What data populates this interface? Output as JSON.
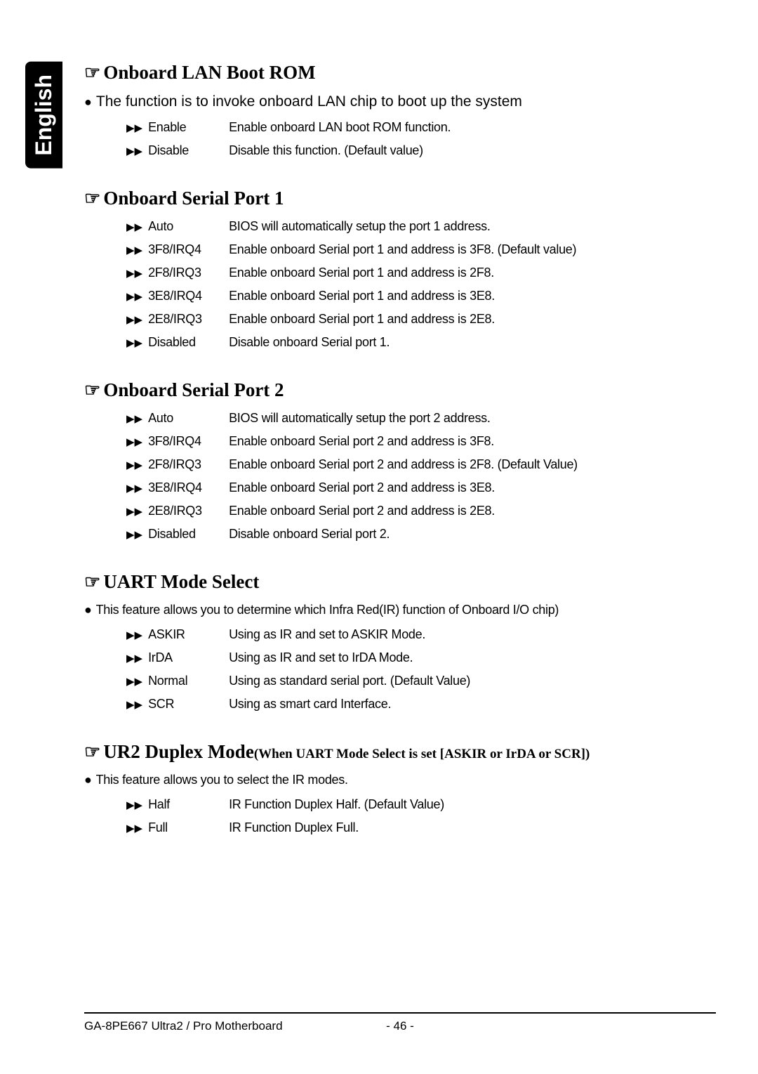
{
  "side_tab": "English",
  "sections": [
    {
      "title": "Onboard  LAN Boot ROM",
      "intro": "The function is to invoke onboard LAN chip to boot up the system",
      "intro_style": "wide",
      "options": [
        {
          "label": "Enable",
          "desc": "Enable onboard LAN boot ROM function."
        },
        {
          "label": "Disable",
          "desc": "Disable this function. (Default value)"
        }
      ]
    },
    {
      "title": "Onboard Serial Port 1",
      "options": [
        {
          "label": "Auto",
          "desc": "BIOS will automatically setup the port 1 address."
        },
        {
          "label": "3F8/IRQ4",
          "desc": "Enable onboard Serial port 1 and address is 3F8. (Default value)"
        },
        {
          "label": "2F8/IRQ3",
          "desc": "Enable onboard Serial port 1 and address is 2F8."
        },
        {
          "label": "3E8/IRQ4",
          "desc": "Enable onboard Serial port 1 and address is 3E8."
        },
        {
          "label": "2E8/IRQ3",
          "desc": "Enable onboard Serial port 1 and address is 2E8."
        },
        {
          "label": "Disabled",
          "desc": "Disable onboard Serial port 1."
        }
      ]
    },
    {
      "title": "Onboard Serial Port 2",
      "options": [
        {
          "label": "Auto",
          "desc": "BIOS will automatically setup the port 2 address."
        },
        {
          "label": "3F8/IRQ4",
          "desc": "Enable onboard Serial port 2 and address is 3F8."
        },
        {
          "label": "2F8/IRQ3",
          "desc": "Enable onboard Serial port 2 and address is 2F8. (Default Value)"
        },
        {
          "label": "3E8/IRQ4",
          "desc": "Enable onboard Serial port 2 and address is 3E8."
        },
        {
          "label": "2E8/IRQ3",
          "desc": "Enable onboard Serial port 2 and address is 2E8."
        },
        {
          "label": "Disabled",
          "desc": "Disable onboard Serial port 2."
        }
      ]
    },
    {
      "title": "UART Mode Select",
      "intro": "This feature allows you to determine which Infra Red(IR) function of Onboard I/O chip)",
      "intro_style": "narrow",
      "options": [
        {
          "label": "ASKIR",
          "desc": "Using as IR and set  to ASKIR Mode."
        },
        {
          "label": "IrDA",
          "desc": "Using as IR and set  to IrDA Mode."
        },
        {
          "label": "Normal",
          "desc": "Using as standard serial port. (Default Value)"
        },
        {
          "label": "SCR",
          "desc": "Using as smart card Interface."
        }
      ]
    },
    {
      "title": "UR2 Duplex Mode",
      "subtitle": "(When UART Mode Select is set [ASKIR or IrDA or SCR])",
      "intro": "This feature allows you to select the IR modes.",
      "intro_style": "narrow",
      "options": [
        {
          "label": "Half",
          "desc": "IR Function Duplex Half. (Default Value)"
        },
        {
          "label": "Full",
          "desc": "IR Function Duplex Full."
        }
      ]
    }
  ],
  "footer": {
    "left": "GA-8PE667 Ultra2 / Pro Motherboard",
    "center": "- 46 -"
  },
  "glyphs": {
    "hand": "☞",
    "bullet": "●",
    "arrow": "▶▶"
  }
}
